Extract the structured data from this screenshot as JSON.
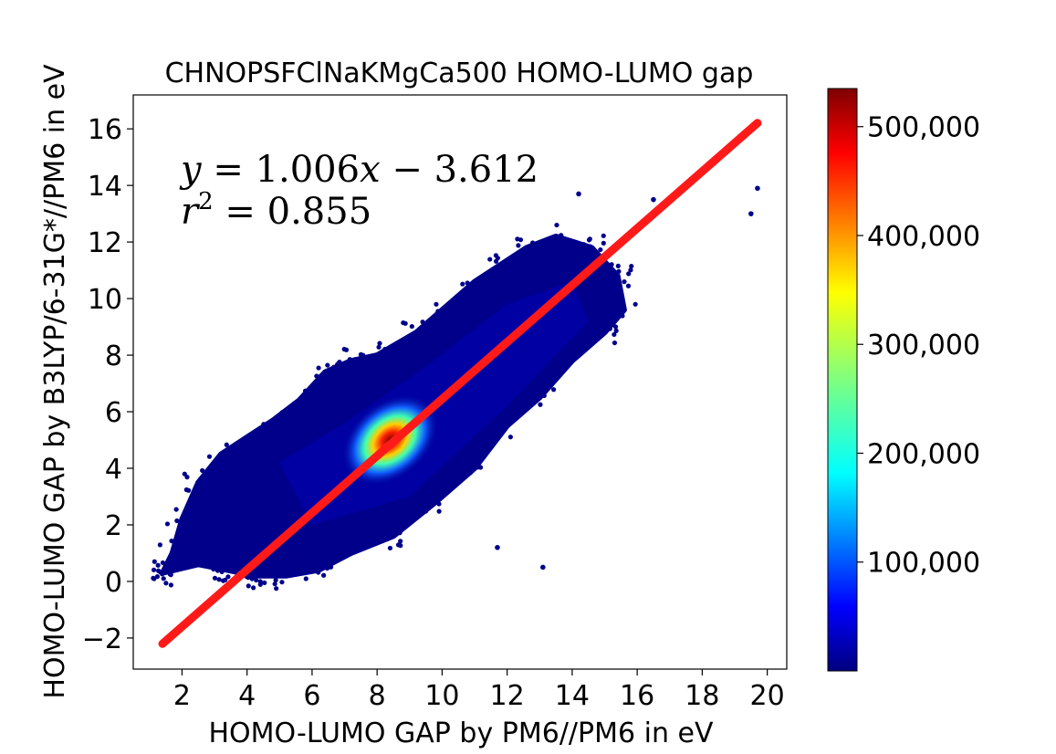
{
  "chart_data": {
    "type": "scatter",
    "title": "CHNOPSFClNaKMgCa500 HOMO-LUMO gap",
    "xlabel": "HOMO-LUMO GAP by PM6//PM6 in eV",
    "ylabel": "HOMO-LUMO GAP by B3LYP/6-31G*//PM6 in eV",
    "xlim": [
      0.5,
      20.6
    ],
    "ylim": [
      -3.1,
      17.2
    ],
    "xticks": [
      "2",
      "4",
      "6",
      "8",
      "10",
      "12",
      "14",
      "16",
      "18",
      "20"
    ],
    "yticks": [
      "−2",
      "0",
      "2",
      "4",
      "6",
      "8",
      "10",
      "12",
      "14",
      "16"
    ],
    "grid": false,
    "annotations": {
      "equation": {
        "lhs": "y",
        "eq": " = ",
        "a": "1.006",
        "x": "x",
        "minus": " − ",
        "b": "3.612"
      },
      "r2": {
        "r": "r",
        "sup": "2",
        "eq": " = ",
        "value": "0.855"
      }
    },
    "fit_line": {
      "slope": 1.006,
      "intercept": -3.612,
      "x_range": [
        1.4,
        19.7
      ],
      "color": "#ff1a1a"
    },
    "density": {
      "colormap": "jet",
      "colorbar_range": [
        0,
        535000
      ],
      "colorbar_ticks": [
        "100,000",
        "200,000",
        "300,000",
        "400,000",
        "500,000"
      ],
      "peak_center": [
        8.4,
        5.0
      ]
    },
    "outliers": [
      [
        19.7,
        13.9
      ],
      [
        19.5,
        13.0
      ],
      [
        13.1,
        0.5
      ],
      [
        11.7,
        1.2
      ],
      [
        14.2,
        13.7
      ],
      [
        16.5,
        13.5
      ]
    ]
  }
}
